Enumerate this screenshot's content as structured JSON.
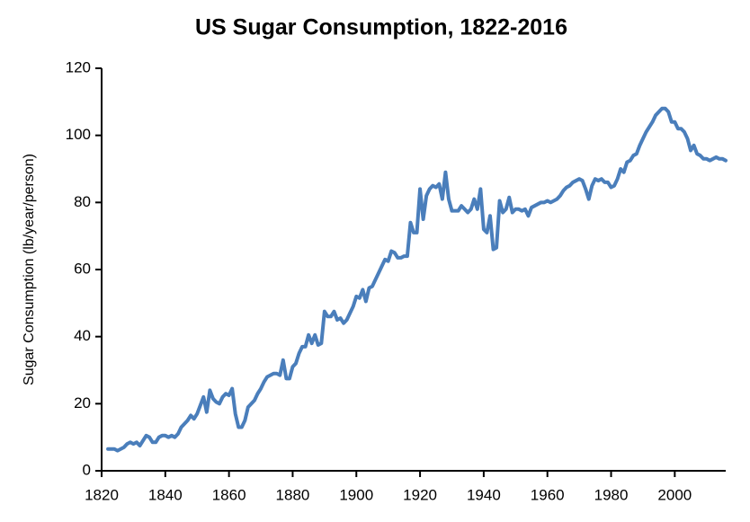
{
  "chart_data": {
    "type": "line",
    "title": "US Sugar Consumption, 1822-2016",
    "y_label": "Sugar Consumption (lb/year/person)",
    "color": "#4a7ebb",
    "x": [
      1822,
      1823,
      1824,
      1825,
      1826,
      1827,
      1828,
      1829,
      1830,
      1831,
      1832,
      1833,
      1834,
      1835,
      1836,
      1837,
      1838,
      1839,
      1840,
      1841,
      1842,
      1843,
      1844,
      1845,
      1846,
      1847,
      1848,
      1849,
      1850,
      1851,
      1852,
      1853,
      1854,
      1855,
      1856,
      1857,
      1858,
      1859,
      1860,
      1861,
      1862,
      1863,
      1864,
      1865,
      1866,
      1867,
      1868,
      1869,
      1870,
      1871,
      1872,
      1873,
      1874,
      1875,
      1876,
      1877,
      1878,
      1879,
      1880,
      1881,
      1882,
      1883,
      1884,
      1885,
      1886,
      1887,
      1888,
      1889,
      1890,
      1891,
      1892,
      1893,
      1894,
      1895,
      1896,
      1897,
      1898,
      1899,
      1900,
      1901,
      1902,
      1903,
      1904,
      1905,
      1906,
      1907,
      1908,
      1909,
      1910,
      1911,
      1912,
      1913,
      1914,
      1915,
      1916,
      1917,
      1918,
      1919,
      1920,
      1921,
      1922,
      1923,
      1924,
      1925,
      1926,
      1927,
      1928,
      1929,
      1930,
      1931,
      1932,
      1933,
      1934,
      1935,
      1936,
      1937,
      1938,
      1939,
      1940,
      1941,
      1942,
      1943,
      1944,
      1945,
      1946,
      1947,
      1948,
      1949,
      1950,
      1951,
      1952,
      1953,
      1954,
      1955,
      1956,
      1957,
      1958,
      1959,
      1960,
      1961,
      1962,
      1963,
      1964,
      1965,
      1966,
      1967,
      1968,
      1969,
      1970,
      1971,
      1972,
      1973,
      1974,
      1975,
      1976,
      1977,
      1978,
      1979,
      1980,
      1981,
      1982,
      1983,
      1984,
      1985,
      1986,
      1987,
      1988,
      1989,
      1990,
      1991,
      1992,
      1993,
      1994,
      1995,
      1996,
      1997,
      1998,
      1999,
      2000,
      2001,
      2002,
      2003,
      2004,
      2005,
      2006,
      2007,
      2008,
      2009,
      2010,
      2011,
      2012,
      2013,
      2014,
      2015,
      2016
    ],
    "values": [
      6.5,
      6.5,
      6.5,
      6,
      6.5,
      7,
      8,
      8.5,
      8,
      8.5,
      7.5,
      9,
      10.5,
      10,
      8.5,
      8.5,
      10,
      10.5,
      10.5,
      10,
      10.5,
      10,
      11,
      13,
      14,
      15,
      16.5,
      15.5,
      17,
      19.5,
      22,
      17.5,
      24,
      21.5,
      20.5,
      20,
      22,
      23,
      22.5,
      24.5,
      17,
      13,
      13,
      15,
      19,
      20,
      21,
      23,
      24.5,
      26.5,
      28,
      28.5,
      29,
      29,
      28.5,
      33,
      27.5,
      27.5,
      31,
      32,
      35,
      37,
      37,
      40.5,
      38,
      40.5,
      37.5,
      38,
      47.5,
      46,
      46,
      47.5,
      45,
      45.5,
      44,
      45,
      47,
      49,
      52,
      51.5,
      54,
      50.5,
      54.5,
      55,
      57,
      59,
      61,
      63,
      62.5,
      65.5,
      65,
      63.5,
      63.5,
      64,
      64,
      74,
      71,
      71,
      84,
      75,
      82,
      84,
      85,
      84.5,
      85.5,
      81,
      89,
      81,
      77.5,
      77.5,
      77.5,
      79,
      78,
      77,
      78,
      81,
      78,
      84,
      72,
      71,
      76,
      66,
      66.5,
      80.5,
      77,
      78,
      81.5,
      77,
      78,
      78,
      77.5,
      78,
      76,
      78.5,
      79,
      79.5,
      80,
      80,
      80.5,
      80,
      80.5,
      81,
      82,
      83.5,
      84.5,
      85,
      86,
      86.5,
      87,
      86.5,
      84,
      81,
      85,
      87,
      86.5,
      87,
      86,
      86,
      84.5,
      85,
      87,
      90,
      89,
      92,
      92.5,
      94,
      94.5,
      97,
      99,
      101,
      102.5,
      104,
      106,
      107,
      108,
      108,
      107,
      104,
      104,
      102,
      102,
      101,
      99,
      95.5,
      97,
      94.5,
      94,
      93,
      93,
      92.5,
      93,
      93.5,
      93,
      93,
      92.5
    ],
    "xlim": [
      1820,
      2016
    ],
    "xticks": [
      1820,
      1840,
      1860,
      1880,
      1900,
      1920,
      1940,
      1960,
      1980,
      2000
    ],
    "ylim": [
      0,
      120
    ],
    "yticks": [
      0,
      20,
      40,
      60,
      80,
      100,
      120
    ],
    "grid": false
  }
}
